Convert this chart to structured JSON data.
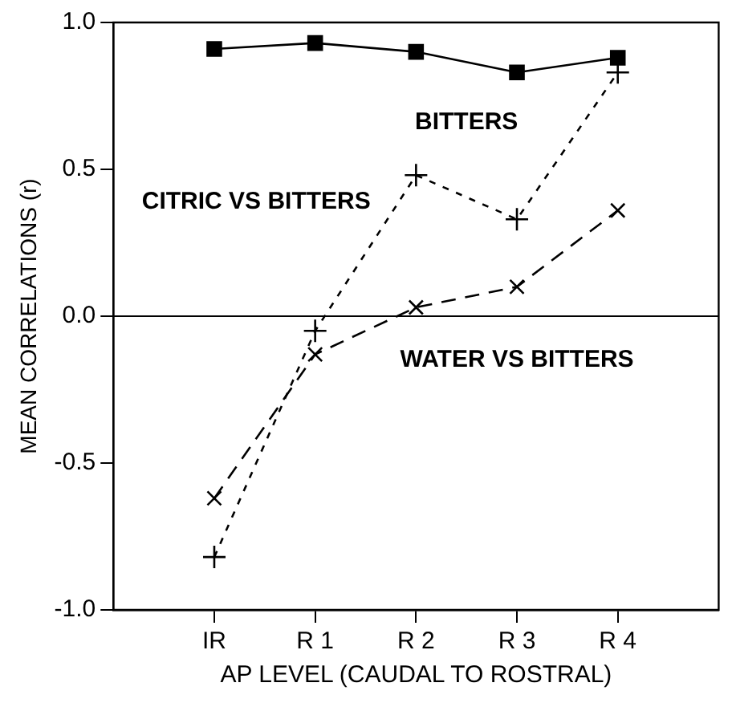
{
  "chart_data": {
    "type": "line",
    "xlabel": "AP LEVEL (CAUDAL TO ROSTRAL)",
    "ylabel": "MEAN CORRELATIONS (r)",
    "categories": [
      "IR",
      "R 1",
      "R 2",
      "R 3",
      "R 4"
    ],
    "series": [
      {
        "name": "BITTERS",
        "color": "#000000",
        "values": [
          0.91,
          0.93,
          0.9,
          0.83,
          0.88
        ],
        "marker": "square",
        "line_style": "solid"
      },
      {
        "name": "CITRIC VS BITTERS",
        "color": "#000000",
        "values": [
          -0.82,
          -0.05,
          0.48,
          0.33,
          0.83
        ],
        "marker": "plus",
        "line_style": "dotted"
      },
      {
        "name": "WATER VS BITTERS",
        "color": "#000000",
        "values": [
          -0.62,
          -0.13,
          0.03,
          0.1,
          0.36
        ],
        "marker": "cross",
        "line_style": "dashed"
      }
    ],
    "ylim": [
      -1,
      1
    ],
    "yticks": [
      {
        "value": -1,
        "label": "-1.0"
      },
      {
        "value": -0.5,
        "label": "-0.5"
      },
      {
        "value": 0,
        "label": "0.0"
      },
      {
        "value": 0.5,
        "label": "0.5"
      },
      {
        "value": 1,
        "label": "1.0"
      }
    ],
    "ref_lines": [
      {
        "axis": "y",
        "value": 0,
        "color": "#000000"
      }
    ],
    "grid": false,
    "legend": false
  }
}
